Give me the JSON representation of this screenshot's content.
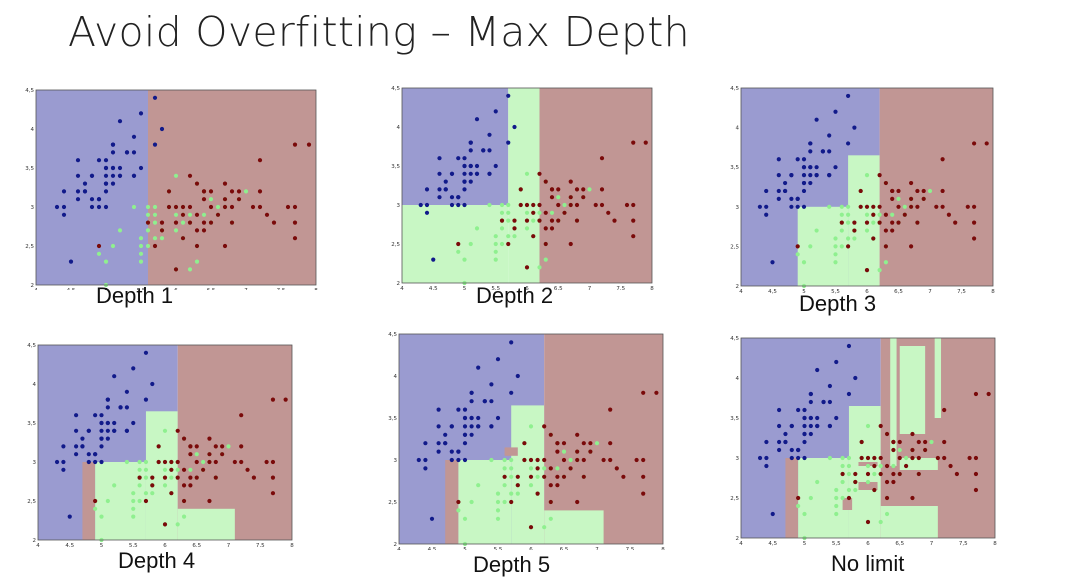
{
  "slide": {
    "title": "Avoid Overfitting – Max Depth"
  },
  "colors": {
    "blue_region": "#9a9bd0",
    "red_region": "#c19694",
    "green_region": "#c8f7c4",
    "blue_point": "#111a8a",
    "red_point": "#7a0a0a",
    "green_point": "#8ff08f",
    "frame": "#555555"
  },
  "axes": {
    "xlim": [
      4,
      8
    ],
    "ylim": [
      2,
      4.5
    ],
    "x_ticks": [
      "4",
      "4,5",
      "5",
      "5,5",
      "6",
      "6,5",
      "7",
      "7,5",
      "8"
    ],
    "y_ticks": [
      "2",
      "2,5",
      "3",
      "3,5",
      "4",
      "4,5"
    ]
  },
  "chart_data": [
    {
      "type": "scatter",
      "caption": "Depth 1",
      "regions": [
        {
          "class": "blue",
          "x": [
            4,
            5.6
          ],
          "y": [
            2,
            4.5
          ]
        },
        {
          "class": "red",
          "x": [
            5.6,
            8
          ],
          "y": [
            2,
            4.5
          ]
        }
      ]
    },
    {
      "type": "scatter",
      "caption": "Depth 2",
      "regions": [
        {
          "class": "blue",
          "x": [
            4,
            5.7
          ],
          "y": [
            3,
            4.5
          ]
        },
        {
          "class": "green",
          "x": [
            4,
            5.7
          ],
          "y": [
            2,
            3
          ]
        },
        {
          "class": "green",
          "x": [
            5.7,
            6.2
          ],
          "y": [
            2,
            4.5
          ]
        },
        {
          "class": "red",
          "x": [
            6.2,
            8
          ],
          "y": [
            2,
            4.5
          ]
        }
      ]
    },
    {
      "type": "scatter",
      "caption": "Depth 3",
      "regions": [
        {
          "class": "blue",
          "x": [
            4,
            6.2
          ],
          "y": [
            2,
            4.5
          ]
        },
        {
          "class": "green",
          "x": [
            4.9,
            5.7
          ],
          "y": [
            2,
            3
          ]
        },
        {
          "class": "green",
          "x": [
            5.7,
            6.2
          ],
          "y": [
            2,
            3.65
          ]
        },
        {
          "class": "red",
          "x": [
            6.2,
            8
          ],
          "y": [
            2,
            4.5
          ]
        }
      ]
    },
    {
      "type": "scatter",
      "caption": "Depth 4",
      "regions": [
        {
          "class": "blue",
          "x": [
            4,
            6.2
          ],
          "y": [
            2,
            4.5
          ]
        },
        {
          "class": "red",
          "x": [
            4.7,
            4.9
          ],
          "y": [
            2,
            3
          ]
        },
        {
          "class": "green",
          "x": [
            4.9,
            5.7
          ],
          "y": [
            2,
            3
          ]
        },
        {
          "class": "green",
          "x": [
            5.7,
            6.2
          ],
          "y": [
            2,
            3.65
          ]
        },
        {
          "class": "red",
          "x": [
            6.2,
            8
          ],
          "y": [
            2,
            4.5
          ]
        },
        {
          "class": "green",
          "x": [
            6.2,
            7.1
          ],
          "y": [
            2,
            2.4
          ]
        }
      ]
    },
    {
      "type": "scatter",
      "caption": "Depth 5",
      "regions": [
        {
          "class": "blue",
          "x": [
            4,
            6.2
          ],
          "y": [
            2,
            4.5
          ]
        },
        {
          "class": "red",
          "x": [
            4.7,
            4.9
          ],
          "y": [
            2,
            3
          ]
        },
        {
          "class": "green",
          "x": [
            4.9,
            5.7
          ],
          "y": [
            2,
            3
          ]
        },
        {
          "class": "green",
          "x": [
            5.7,
            6.2
          ],
          "y": [
            2,
            3.65
          ]
        },
        {
          "class": "red",
          "x": [
            6.2,
            8
          ],
          "y": [
            2,
            4.5
          ]
        },
        {
          "class": "green",
          "x": [
            6.2,
            7.1
          ],
          "y": [
            2,
            2.4
          ]
        },
        {
          "class": "red",
          "x": [
            5.6,
            5.8
          ],
          "y": [
            3.05,
            3.15
          ]
        }
      ]
    },
    {
      "type": "scatter",
      "caption": "No limit",
      "regions": [
        {
          "class": "blue",
          "x": [
            4,
            6.2
          ],
          "y": [
            2,
            4.5
          ]
        },
        {
          "class": "red",
          "x": [
            4.7,
            4.9
          ],
          "y": [
            2,
            3
          ]
        },
        {
          "class": "green",
          "x": [
            4.9,
            5.7
          ],
          "y": [
            2,
            3
          ]
        },
        {
          "class": "green",
          "x": [
            5.7,
            6.2
          ],
          "y": [
            2,
            3.65
          ]
        },
        {
          "class": "red",
          "x": [
            6.2,
            8
          ],
          "y": [
            2,
            4.5
          ]
        },
        {
          "class": "green",
          "x": [
            6.2,
            7.1
          ],
          "y": [
            2,
            2.4
          ]
        },
        {
          "class": "green",
          "x": [
            6.35,
            6.45
          ],
          "y": [
            2.9,
            4.5
          ]
        },
        {
          "class": "green",
          "x": [
            6.5,
            6.9
          ],
          "y": [
            3.3,
            4.4
          ]
        },
        {
          "class": "green",
          "x": [
            7.05,
            7.15
          ],
          "y": [
            3.5,
            4.5
          ]
        },
        {
          "class": "green",
          "x": [
            6.5,
            7.1
          ],
          "y": [
            2.85,
            3.0
          ]
        },
        {
          "class": "red",
          "x": [
            6.55,
            6.95
          ],
          "y": [
            3.0,
            3.25
          ]
        },
        {
          "class": "red",
          "x": [
            5.85,
            6.15
          ],
          "y": [
            2.6,
            2.7
          ]
        },
        {
          "class": "red",
          "x": [
            5.85,
            6.15
          ],
          "y": [
            2.9,
            2.95
          ]
        },
        {
          "class": "red",
          "x": [
            5.6,
            5.75
          ],
          "y": [
            2.35,
            2.5
          ]
        }
      ]
    }
  ],
  "points": {
    "blue": [
      [
        4.3,
        3.0
      ],
      [
        4.4,
        2.9
      ],
      [
        4.4,
        3.0
      ],
      [
        4.4,
        3.2
      ],
      [
        4.5,
        2.3
      ],
      [
        4.6,
        3.1
      ],
      [
        4.6,
        3.2
      ],
      [
        4.6,
        3.4
      ],
      [
        4.6,
        3.6
      ],
      [
        4.7,
        3.2
      ],
      [
        4.7,
        3.3
      ],
      [
        4.8,
        3.0
      ],
      [
        4.8,
        3.1
      ],
      [
        4.8,
        3.4
      ],
      [
        4.9,
        3.0
      ],
      [
        4.9,
        3.1
      ],
      [
        4.9,
        3.6
      ],
      [
        5.0,
        3.0
      ],
      [
        5.0,
        3.2
      ],
      [
        5.0,
        3.3
      ],
      [
        5.0,
        3.4
      ],
      [
        5.0,
        3.5
      ],
      [
        5.0,
        3.6
      ],
      [
        5.1,
        3.3
      ],
      [
        5.1,
        3.4
      ],
      [
        5.1,
        3.5
      ],
      [
        5.1,
        3.7
      ],
      [
        5.1,
        3.8
      ],
      [
        5.2,
        3.4
      ],
      [
        5.2,
        3.5
      ],
      [
        5.2,
        4.1
      ],
      [
        5.3,
        3.7
      ],
      [
        5.4,
        3.4
      ],
      [
        5.4,
        3.7
      ],
      [
        5.4,
        3.9
      ],
      [
        5.5,
        3.5
      ],
      [
        5.5,
        4.2
      ],
      [
        5.7,
        3.8
      ],
      [
        5.7,
        4.4
      ],
      [
        5.8,
        4.0
      ],
      [
        5.4,
        3.4
      ],
      [
        4.9,
        3.1
      ],
      [
        5.1,
        3.8
      ],
      [
        5.2,
        3.4
      ],
      [
        4.8,
        3.4
      ],
      [
        4.7,
        3.2
      ],
      [
        5.0,
        3.5
      ],
      [
        5.1,
        3.5
      ],
      [
        5.3,
        3.7
      ],
      [
        5.0,
        3.3
      ]
    ],
    "green": [
      [
        4.9,
        2.4
      ],
      [
        5.0,
        2.0
      ],
      [
        5.0,
        2.3
      ],
      [
        5.1,
        2.5
      ],
      [
        5.2,
        2.7
      ],
      [
        5.5,
        2.3
      ],
      [
        5.5,
        2.4
      ],
      [
        5.5,
        2.5
      ],
      [
        5.5,
        2.6
      ],
      [
        5.6,
        2.5
      ],
      [
        5.6,
        2.7
      ],
      [
        5.6,
        2.9
      ],
      [
        5.6,
        3.0
      ],
      [
        5.7,
        2.6
      ],
      [
        5.7,
        2.8
      ],
      [
        5.7,
        2.9
      ],
      [
        5.7,
        3.0
      ],
      [
        5.8,
        2.7
      ],
      [
        5.9,
        3.0
      ],
      [
        5.9,
        3.2
      ],
      [
        6.0,
        2.2
      ],
      [
        6.0,
        2.7
      ],
      [
        6.0,
        2.9
      ],
      [
        6.0,
        3.4
      ],
      [
        6.1,
        2.8
      ],
      [
        6.1,
        2.9
      ],
      [
        6.1,
        3.0
      ],
      [
        6.2,
        2.2
      ],
      [
        6.2,
        2.9
      ],
      [
        6.3,
        2.3
      ],
      [
        6.3,
        2.5
      ],
      [
        6.3,
        3.3
      ],
      [
        6.4,
        2.9
      ],
      [
        6.4,
        3.2
      ],
      [
        6.5,
        2.8
      ],
      [
        6.6,
        2.9
      ],
      [
        6.6,
        3.0
      ],
      [
        6.7,
        3.0
      ],
      [
        6.7,
        3.1
      ],
      [
        6.8,
        2.8
      ],
      [
        6.9,
        3.1
      ],
      [
        7.0,
        3.2
      ],
      [
        5.8,
        2.6
      ],
      [
        5.6,
        2.8
      ],
      [
        6.1,
        2.6
      ],
      [
        5.4,
        3.0
      ],
      [
        5.8,
        2.7
      ],
      [
        6.2,
        2.8
      ],
      [
        6.0,
        3.0
      ],
      [
        6.5,
        3.1
      ]
    ],
    "red": [
      [
        4.9,
        2.5
      ],
      [
        5.6,
        2.8
      ],
      [
        5.7,
        2.5
      ],
      [
        5.8,
        2.7
      ],
      [
        5.8,
        2.8
      ],
      [
        6.0,
        2.2
      ],
      [
        6.0,
        3.0
      ],
      [
        6.1,
        2.6
      ],
      [
        6.1,
        3.0
      ],
      [
        6.2,
        2.8
      ],
      [
        6.2,
        3.4
      ],
      [
        6.3,
        2.5
      ],
      [
        6.3,
        2.7
      ],
      [
        6.3,
        2.9
      ],
      [
        6.3,
        3.3
      ],
      [
        6.4,
        2.7
      ],
      [
        6.4,
        2.8
      ],
      [
        6.4,
        3.1
      ],
      [
        6.4,
        3.2
      ],
      [
        6.5,
        3.0
      ],
      [
        6.5,
        3.2
      ],
      [
        6.7,
        2.5
      ],
      [
        6.7,
        3.0
      ],
      [
        6.7,
        3.1
      ],
      [
        6.7,
        3.3
      ],
      [
        6.8,
        3.0
      ],
      [
        6.8,
        3.2
      ],
      [
        6.9,
        3.1
      ],
      [
        6.9,
        3.2
      ],
      [
        7.1,
        3.0
      ],
      [
        7.2,
        3.0
      ],
      [
        7.2,
        3.2
      ],
      [
        7.2,
        3.6
      ],
      [
        7.3,
        2.9
      ],
      [
        7.4,
        2.8
      ],
      [
        7.6,
        3.0
      ],
      [
        7.7,
        2.6
      ],
      [
        7.7,
        2.8
      ],
      [
        7.7,
        3.0
      ],
      [
        7.7,
        3.8
      ],
      [
        7.9,
        3.8
      ],
      [
        6.5,
        2.8
      ],
      [
        5.9,
        3.0
      ],
      [
        6.8,
        2.8
      ],
      [
        6.2,
        3.0
      ],
      [
        6.6,
        2.9
      ],
      [
        6.0,
        2.8
      ],
      [
        6.1,
        2.9
      ],
      [
        5.9,
        3.2
      ],
      [
        6.4,
        3.2
      ]
    ]
  }
}
